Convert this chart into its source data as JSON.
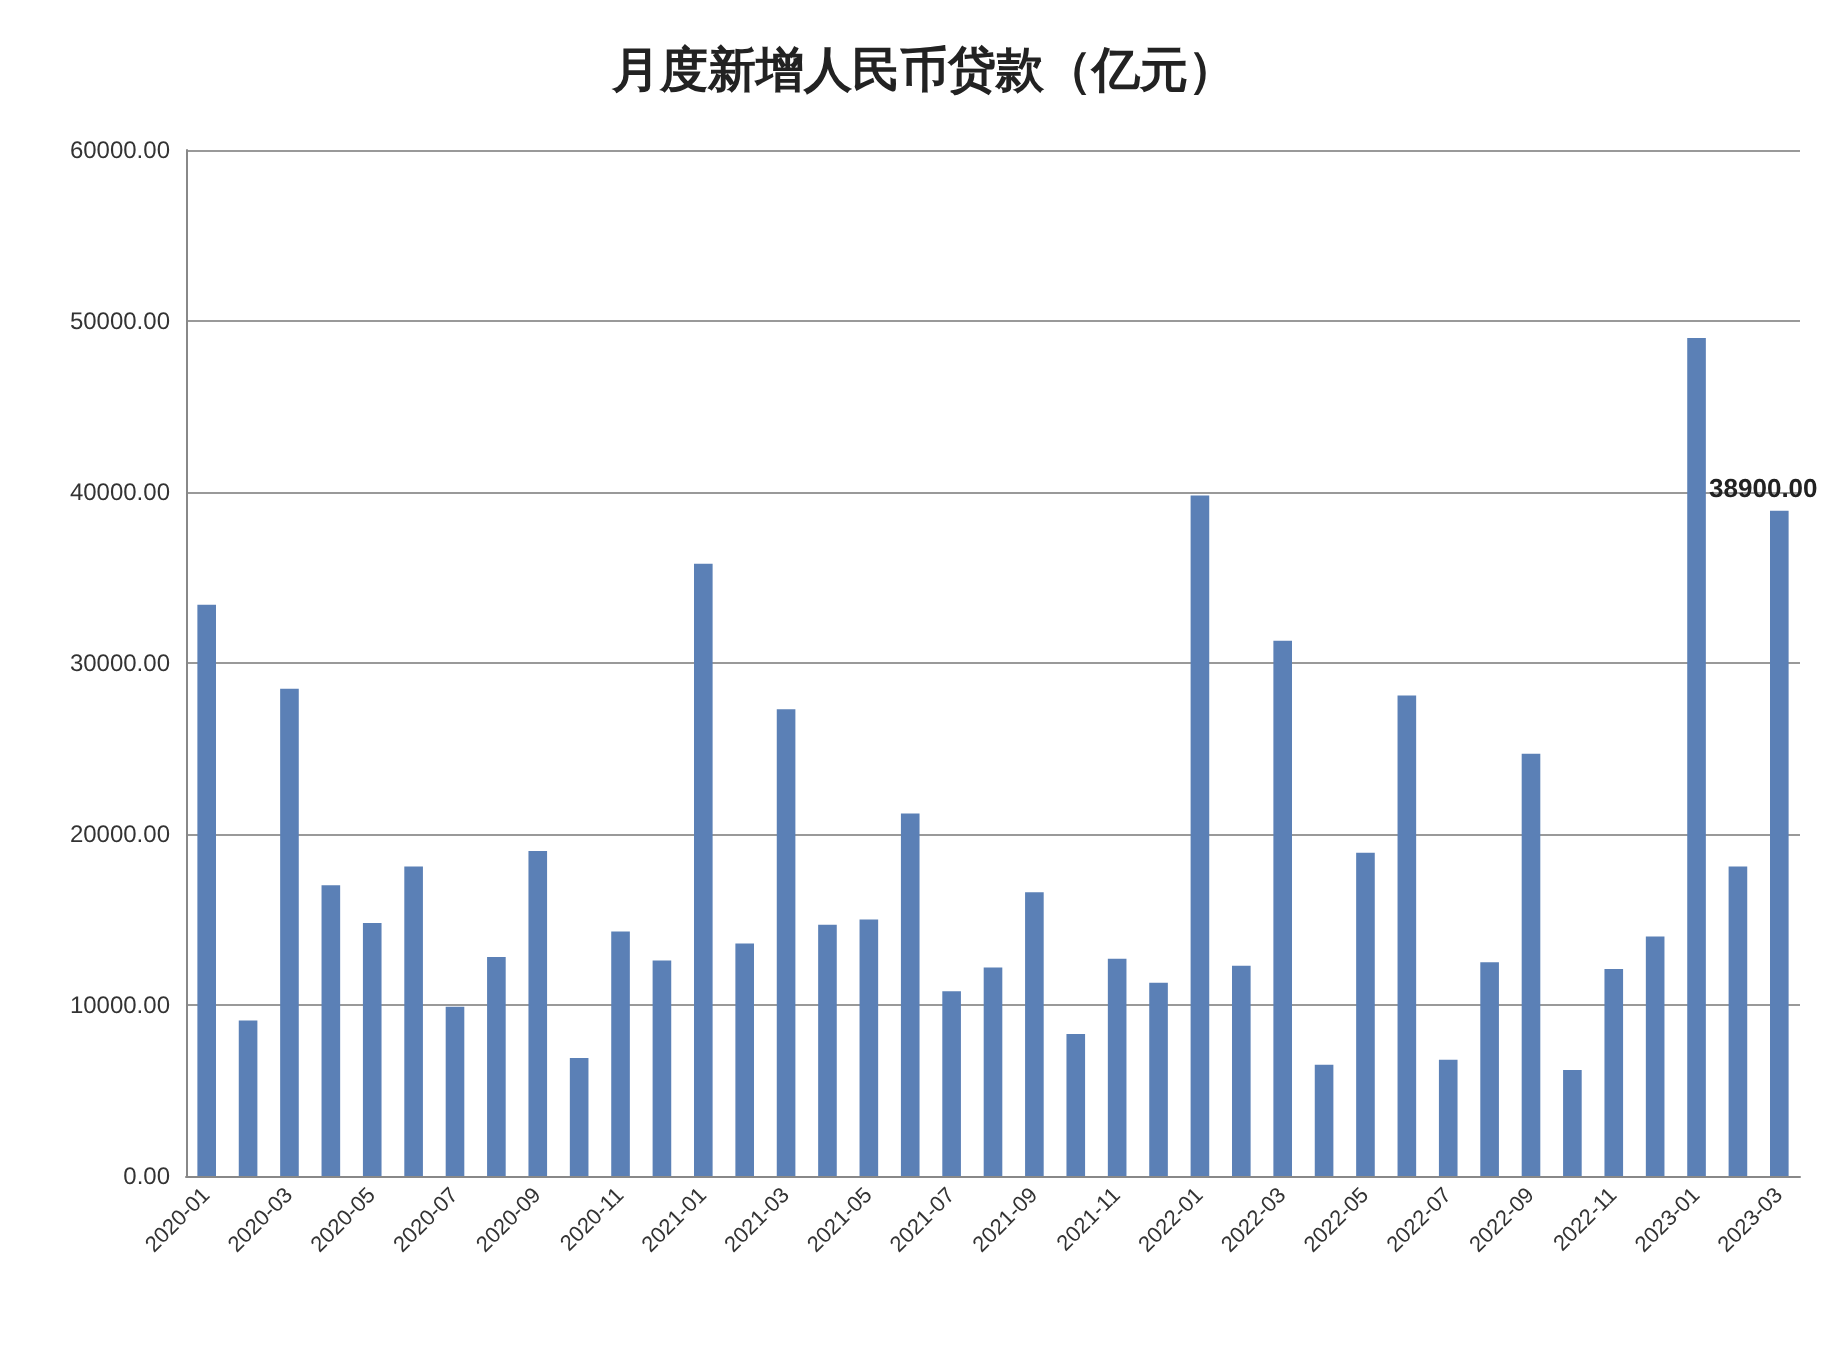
{
  "chart_data": {
    "type": "bar",
    "title": "月度新增人民币贷款（亿元）",
    "categories": [
      "2020-01",
      null,
      "2020-03",
      null,
      "2020-05",
      null,
      "2020-07",
      null,
      "2020-09",
      null,
      "2020-11",
      null,
      "2021-01",
      null,
      "2021-03",
      null,
      "2021-05",
      null,
      "2021-07",
      null,
      "2021-09",
      null,
      "2021-11",
      null,
      "2022-01",
      null,
      "2022-03",
      null,
      "2022-05",
      null,
      "2022-07",
      null,
      "2022-09",
      null,
      "2022-11",
      null,
      "2023-01",
      null,
      "2023-03"
    ],
    "values": [
      33400,
      9100,
      28500,
      17000,
      14800,
      18100,
      9900,
      12800,
      19000,
      6900,
      14300,
      12600,
      35800,
      13600,
      27300,
      14700,
      15000,
      21200,
      10800,
      12200,
      16600,
      8300,
      12700,
      11300,
      39800,
      12300,
      31300,
      6500,
      18900,
      28100,
      6800,
      12500,
      24700,
      6200,
      12100,
      14000,
      49000,
      18100,
      38900
    ],
    "value_labels": [
      null,
      null,
      null,
      null,
      null,
      null,
      null,
      null,
      null,
      null,
      null,
      null,
      null,
      null,
      null,
      null,
      null,
      null,
      null,
      null,
      null,
      null,
      null,
      null,
      null,
      null,
      null,
      null,
      null,
      null,
      null,
      null,
      null,
      null,
      null,
      null,
      null,
      null,
      "38900.00"
    ],
    "color": "#5b80b6",
    "ylim": [
      0,
      60000
    ],
    "yticks": [
      {
        "value": 0,
        "label": "0.00"
      },
      {
        "value": 10000,
        "label": "10000.00"
      },
      {
        "value": 20000,
        "label": "20000.00"
      },
      {
        "value": 30000,
        "label": "30000.00"
      },
      {
        "value": 40000,
        "label": "40000.00"
      },
      {
        "value": 50000,
        "label": "50000.00"
      },
      {
        "value": 60000,
        "label": "60000.00"
      }
    ],
    "grid": "y"
  }
}
